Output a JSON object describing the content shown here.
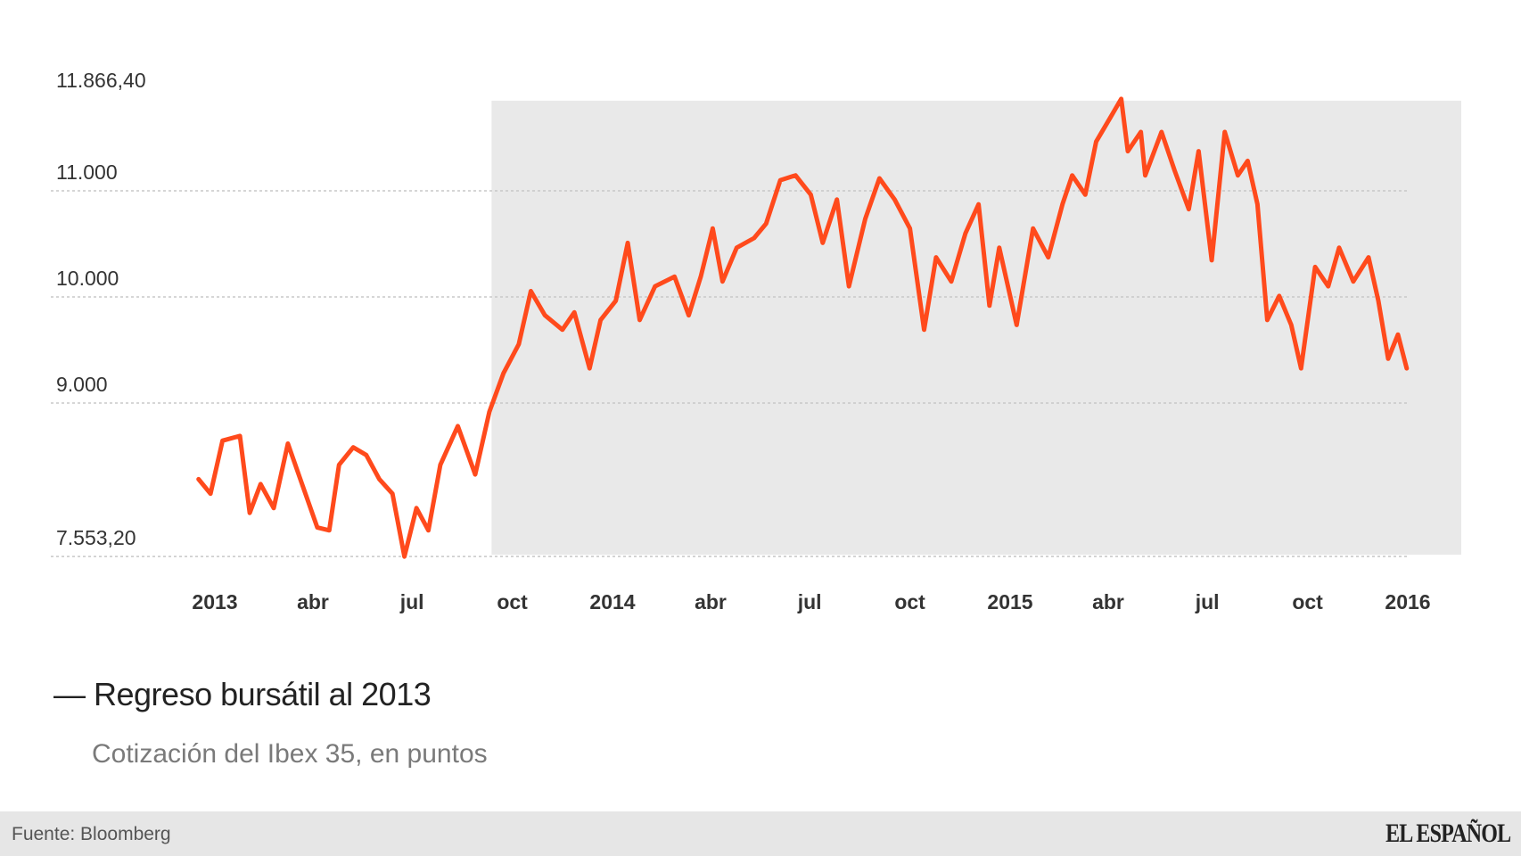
{
  "chart_data": {
    "type": "line",
    "title": "Regreso bursátil al 2013",
    "title_prefix": "—",
    "subtitle": "Cotización del Ibex 35, en puntos",
    "source": "Fuente: Bloomberg",
    "brand": "EL ESPAÑOL",
    "line_color": "#ff4a1c",
    "highlight_color": "#e9e9e9",
    "highlight_start": "2013-09-12",
    "grid": true,
    "ylim": [
      7553.2,
      11866.4
    ],
    "y_ticks": [
      {
        "value": 11866.4,
        "label": "11.866,40",
        "gridline": false
      },
      {
        "value": 11000,
        "label": "11.000",
        "gridline": true
      },
      {
        "value": 10000,
        "label": "10.000",
        "gridline": true
      },
      {
        "value": 9000,
        "label": "9.000",
        "gridline": true
      },
      {
        "value": 7553.2,
        "label": "7.553,20",
        "gridline": true
      }
    ],
    "x_ticks": [
      {
        "date": "2013-01-01",
        "label": "2013"
      },
      {
        "date": "2013-04-01",
        "label": "abr"
      },
      {
        "date": "2013-07-01",
        "label": "jul"
      },
      {
        "date": "2013-10-01",
        "label": "oct"
      },
      {
        "date": "2014-01-01",
        "label": "2014"
      },
      {
        "date": "2014-04-01",
        "label": "abr"
      },
      {
        "date": "2014-07-01",
        "label": "jul"
      },
      {
        "date": "2014-10-01",
        "label": "oct"
      },
      {
        "date": "2015-01-01",
        "label": "2015"
      },
      {
        "date": "2015-04-01",
        "label": "abr"
      },
      {
        "date": "2015-07-01",
        "label": "jul"
      },
      {
        "date": "2015-10-01",
        "label": "oct"
      },
      {
        "date": "2016-01-01",
        "label": "2016"
      }
    ],
    "series": [
      {
        "points": [
          [
            "2012-12-17",
            8282
          ],
          [
            "2012-12-28",
            8145
          ],
          [
            "2013-01-08",
            8645
          ],
          [
            "2013-01-24",
            8690
          ],
          [
            "2013-02-02",
            7964
          ],
          [
            "2013-02-12",
            8236
          ],
          [
            "2013-02-24",
            8010
          ],
          [
            "2013-03-09",
            8618
          ],
          [
            "2013-03-22",
            8236
          ],
          [
            "2013-04-05",
            7827
          ],
          [
            "2013-04-16",
            7800
          ],
          [
            "2013-04-25",
            8418
          ],
          [
            "2013-05-08",
            8582
          ],
          [
            "2013-05-20",
            8510
          ],
          [
            "2013-06-01",
            8282
          ],
          [
            "2013-06-13",
            8145
          ],
          [
            "2013-06-24",
            7553.2
          ],
          [
            "2013-07-05",
            8010
          ],
          [
            "2013-07-16",
            7800
          ],
          [
            "2013-07-27",
            8418
          ],
          [
            "2013-08-12",
            8782
          ],
          [
            "2013-08-28",
            8327
          ],
          [
            "2013-09-10",
            8918
          ],
          [
            "2013-09-23",
            9282
          ],
          [
            "2013-10-07",
            9555
          ],
          [
            "2013-10-18",
            10055
          ],
          [
            "2013-10-31",
            9827
          ],
          [
            "2013-11-16",
            9691
          ],
          [
            "2013-11-27",
            9855
          ],
          [
            "2013-12-11",
            9327
          ],
          [
            "2013-12-21",
            9782
          ],
          [
            "2014-01-04",
            9964
          ],
          [
            "2014-01-15",
            10509
          ],
          [
            "2014-01-26",
            9782
          ],
          [
            "2014-02-09",
            10100
          ],
          [
            "2014-02-27",
            10191
          ],
          [
            "2014-03-12",
            9827
          ],
          [
            "2014-03-23",
            10191
          ],
          [
            "2014-04-03",
            10645
          ],
          [
            "2014-04-12",
            10145
          ],
          [
            "2014-04-25",
            10464
          ],
          [
            "2014-05-11",
            10555
          ],
          [
            "2014-05-22",
            10691
          ],
          [
            "2014-06-04",
            11100
          ],
          [
            "2014-06-18",
            11145
          ],
          [
            "2014-07-02",
            10964
          ],
          [
            "2014-07-13",
            10509
          ],
          [
            "2014-07-26",
            10918
          ],
          [
            "2014-08-06",
            10100
          ],
          [
            "2014-08-21",
            10736
          ],
          [
            "2014-09-03",
            11118
          ],
          [
            "2014-09-17",
            10918
          ],
          [
            "2014-10-01",
            10645
          ],
          [
            "2014-10-14",
            9691
          ],
          [
            "2014-10-25",
            10373
          ],
          [
            "2014-11-08",
            10145
          ],
          [
            "2014-11-21",
            10600
          ],
          [
            "2014-12-03",
            10873
          ],
          [
            "2014-12-13",
            9918
          ],
          [
            "2014-12-22",
            10464
          ],
          [
            "2015-01-07",
            9736
          ],
          [
            "2015-01-22",
            10645
          ],
          [
            "2015-02-05",
            10373
          ],
          [
            "2015-02-18",
            10873
          ],
          [
            "2015-02-27",
            11145
          ],
          [
            "2015-03-11",
            10964
          ],
          [
            "2015-03-21",
            11464
          ],
          [
            "2015-04-03",
            11691
          ],
          [
            "2015-04-13",
            11866.4
          ],
          [
            "2015-04-19",
            11373
          ],
          [
            "2015-05-01",
            11555
          ],
          [
            "2015-05-05",
            11145
          ],
          [
            "2015-05-20",
            11555
          ],
          [
            "2015-06-01",
            11191
          ],
          [
            "2015-06-14",
            10827
          ],
          [
            "2015-06-23",
            11373
          ],
          [
            "2015-07-05",
            10345
          ],
          [
            "2015-07-17",
            11555
          ],
          [
            "2015-07-29",
            11145
          ],
          [
            "2015-08-07",
            11282
          ],
          [
            "2015-08-16",
            10873
          ],
          [
            "2015-08-25",
            9782
          ],
          [
            "2015-09-05",
            10009
          ],
          [
            "2015-09-16",
            9736
          ],
          [
            "2015-09-25",
            9327
          ],
          [
            "2015-10-08",
            10282
          ],
          [
            "2015-10-20",
            10100
          ],
          [
            "2015-10-30",
            10464
          ],
          [
            "2015-11-12",
            10145
          ],
          [
            "2015-11-26",
            10373
          ],
          [
            "2015-12-05",
            9964
          ],
          [
            "2015-12-14",
            9418
          ],
          [
            "2015-12-23",
            9645
          ],
          [
            "2015-12-31",
            9327
          ]
        ]
      }
    ]
  }
}
